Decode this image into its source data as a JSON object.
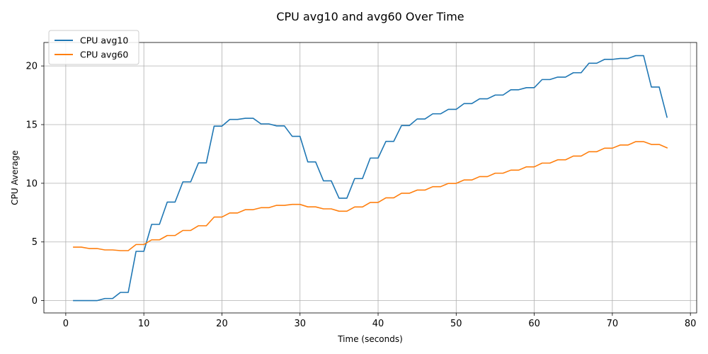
{
  "chart_data": {
    "type": "line",
    "title": "CPU avg10 and avg60 Over Time",
    "xlabel": "Time (seconds)",
    "ylabel": "CPU Average",
    "xlim": [
      -2.8,
      80.8
    ],
    "ylim": [
      -1.05,
      22.0
    ],
    "xticks": [
      0,
      10,
      20,
      30,
      40,
      50,
      60,
      70,
      80
    ],
    "yticks": [
      0,
      5,
      10,
      15,
      20
    ],
    "grid": true,
    "legend_position": "upper-left",
    "x": [
      1,
      2,
      3,
      4,
      5,
      6,
      7,
      8,
      9,
      10,
      11,
      12,
      13,
      14,
      15,
      16,
      17,
      18,
      19,
      20,
      21,
      22,
      23,
      24,
      25,
      26,
      27,
      28,
      29,
      30,
      31,
      32,
      33,
      34,
      35,
      36,
      37,
      38,
      39,
      40,
      41,
      42,
      43,
      44,
      45,
      46,
      47,
      48,
      49,
      50,
      51,
      52,
      53,
      54,
      55,
      56,
      57,
      58,
      59,
      60,
      61,
      62,
      63,
      64,
      65,
      66,
      67,
      68,
      69,
      70,
      71,
      72,
      73,
      74,
      75,
      76,
      77
    ],
    "series": [
      {
        "name": "CPU avg10",
        "color": "#1f77b4",
        "values": [
          0.0,
          0.0,
          0.0,
          0.0,
          0.18,
          0.18,
          0.7,
          0.7,
          4.2,
          4.2,
          6.5,
          6.5,
          8.4,
          8.4,
          10.12,
          10.12,
          11.74,
          11.74,
          14.87,
          14.87,
          15.44,
          15.44,
          15.54,
          15.54,
          15.06,
          15.06,
          14.89,
          14.89,
          14.0,
          14.0,
          11.82,
          11.82,
          10.21,
          10.21,
          8.73,
          8.73,
          10.4,
          10.4,
          12.15,
          12.15,
          13.57,
          13.57,
          14.92,
          14.92,
          15.48,
          15.48,
          15.92,
          15.92,
          16.3,
          16.3,
          16.79,
          16.79,
          17.2,
          17.2,
          17.52,
          17.52,
          17.97,
          17.97,
          18.15,
          18.15,
          18.84,
          18.84,
          19.05,
          19.05,
          19.42,
          19.42,
          20.23,
          20.23,
          20.56,
          20.56,
          20.64,
          20.64,
          20.88,
          20.88,
          18.2,
          18.2,
          15.63
        ]
      },
      {
        "name": "CPU avg60",
        "color": "#ff7f0e",
        "values": [
          4.56,
          4.56,
          4.44,
          4.44,
          4.32,
          4.32,
          4.26,
          4.26,
          4.78,
          4.78,
          5.18,
          5.18,
          5.55,
          5.55,
          5.98,
          5.98,
          6.38,
          6.38,
          7.12,
          7.12,
          7.47,
          7.47,
          7.75,
          7.75,
          7.92,
          7.92,
          8.12,
          8.12,
          8.2,
          8.2,
          7.99,
          7.99,
          7.82,
          7.82,
          7.62,
          7.62,
          7.98,
          7.98,
          8.37,
          8.37,
          8.76,
          8.76,
          9.15,
          9.15,
          9.42,
          9.42,
          9.71,
          9.71,
          9.99,
          9.99,
          10.28,
          10.28,
          10.57,
          10.57,
          10.86,
          10.86,
          11.12,
          11.12,
          11.4,
          11.4,
          11.72,
          11.72,
          12.0,
          12.0,
          12.32,
          12.32,
          12.69,
          12.69,
          12.99,
          12.99,
          13.26,
          13.26,
          13.55,
          13.55,
          13.31,
          13.31,
          13.02
        ]
      }
    ]
  }
}
